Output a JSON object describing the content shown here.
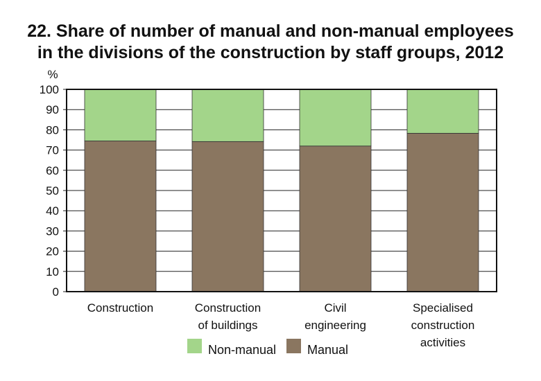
{
  "chart_data": {
    "type": "bar",
    "stacked": true,
    "title_lines": [
      "22. Share of number of manual and non-manual employees",
      "in the divisions of the construction by staff groups, 2012"
    ],
    "ylabel": "%",
    "ylim": [
      0,
      100
    ],
    "yticks": [
      "0",
      "10",
      "20",
      "30",
      "40",
      "50",
      "60",
      "70",
      "80",
      "90",
      "100"
    ],
    "category_lines": [
      [
        "Construction"
      ],
      [
        "Construction",
        "of buildings"
      ],
      [
        "Civil",
        "engineering"
      ],
      [
        "Specialised",
        "construction",
        "activities"
      ]
    ],
    "series": [
      {
        "name": "Manual",
        "color": "#8a7660",
        "values": [
          74.5,
          74.2,
          72.0,
          78.3
        ]
      },
      {
        "name": "Non-manual",
        "color": "#a3d58a",
        "values": [
          25.5,
          25.8,
          28.0,
          21.7
        ]
      }
    ],
    "legend": [
      {
        "label": "Non-manual",
        "color": "#a3d58a"
      },
      {
        "label": "Manual",
        "color": "#8a7660"
      }
    ],
    "grid": true
  }
}
